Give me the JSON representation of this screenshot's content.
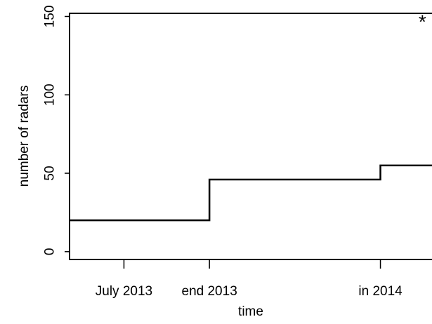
{
  "chart_data": {
    "type": "line",
    "step": true,
    "title": "",
    "xlabel": "time",
    "ylabel": "number of radars",
    "ylim": [
      -5,
      152
    ],
    "yticks": [
      0,
      50,
      100,
      150
    ],
    "xlim": [
      0,
      2.35
    ],
    "xticks": [
      {
        "value": 0.35,
        "label": "July 2013"
      },
      {
        "value": 0.9,
        "label": "end 2013"
      },
      {
        "value": 2.0,
        "label": "in 2014"
      }
    ],
    "series": [
      {
        "x": [
          0,
          0.9,
          0.9,
          2.0,
          2.0,
          2.35
        ],
        "values": [
          20,
          20,
          46,
          46,
          55,
          55
        ]
      }
    ],
    "annotations": [
      {
        "text": "*",
        "x": 2.27,
        "y": 145
      }
    ],
    "grid": false,
    "line_color": "#000000"
  }
}
